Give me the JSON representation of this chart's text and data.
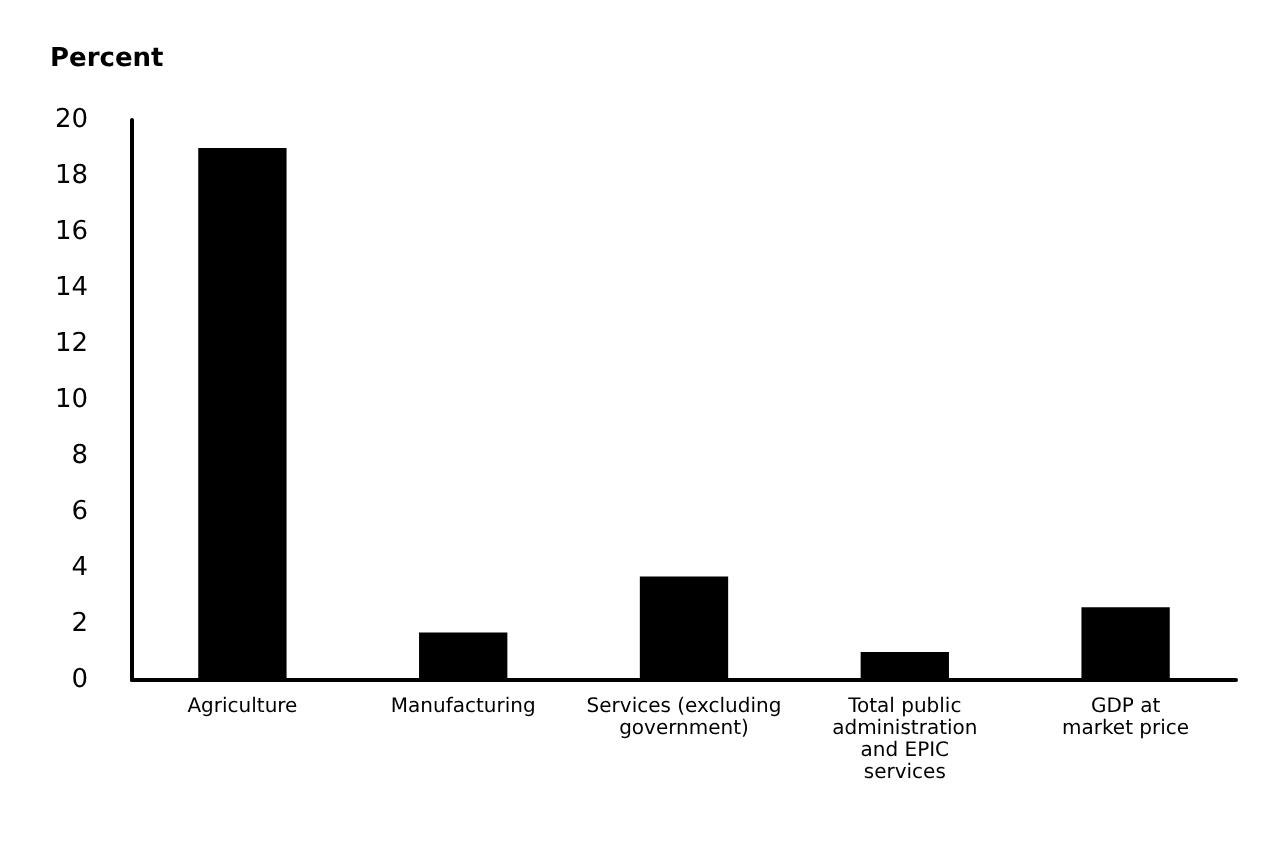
{
  "chart_data": {
    "type": "bar",
    "ylabel": "Percent",
    "categories": [
      "Agriculture",
      "Manufacturing",
      "Services (excluding\ngovernment)",
      "Total public\nadministration\nand EPIC\nservices",
      "GDP at\nmarket price"
    ],
    "values": [
      19.0,
      1.7,
      3.7,
      1.0,
      2.6
    ],
    "color": "#000000",
    "ylim": [
      0,
      20
    ],
    "yticks": [
      0,
      2,
      4,
      6,
      8,
      10,
      12,
      14,
      16,
      18,
      20
    ],
    "grid": false
  }
}
